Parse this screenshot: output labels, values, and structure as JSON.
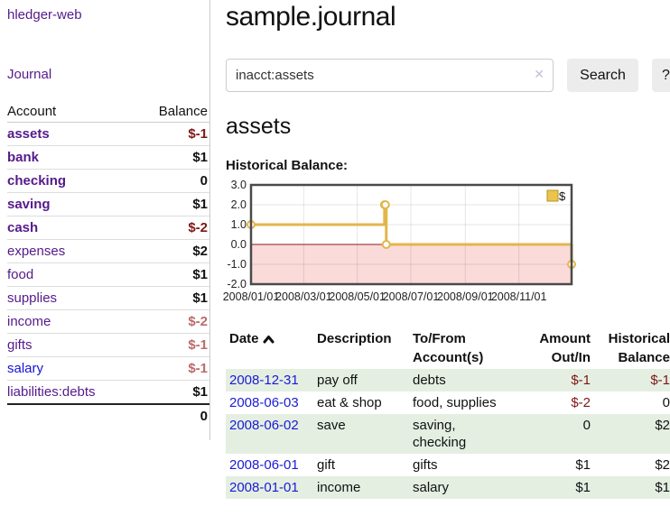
{
  "app": {
    "brand": "hledger-web",
    "nav_journal": "Journal"
  },
  "sidebar": {
    "headers": {
      "account": "Account",
      "balance": "Balance"
    },
    "accounts": [
      {
        "name": "assets",
        "balance": "$-1"
      },
      {
        "name": "bank",
        "balance": "$1"
      },
      {
        "name": "checking",
        "balance": "0"
      },
      {
        "name": "saving",
        "balance": "$1"
      },
      {
        "name": "cash",
        "balance": "$-2"
      },
      {
        "name": "expenses",
        "balance": "$2"
      },
      {
        "name": "food",
        "balance": "$1"
      },
      {
        "name": "supplies",
        "balance": "$1"
      },
      {
        "name": "income",
        "balance": "$-2"
      },
      {
        "name": "gifts",
        "balance": "$-1"
      },
      {
        "name": "salary",
        "balance": "$-1"
      },
      {
        "name": "liabilities:debts",
        "balance": "$1"
      }
    ],
    "total": "0"
  },
  "header": {
    "title": "sample.journal"
  },
  "search": {
    "value": "inacct:assets",
    "clear_label": "✕",
    "search_button": "Search",
    "help_button": "?"
  },
  "account_page": {
    "heading": "assets",
    "chart_label": "Historical Balance:"
  },
  "chart_data": {
    "type": "line",
    "step": true,
    "title": "Historical Balance",
    "legend": "$",
    "series": [
      {
        "name": "$",
        "color": "#e3b64b",
        "points": [
          [
            "2008-01-01",
            1
          ],
          [
            "2008-06-01",
            2
          ],
          [
            "2008-06-02",
            2
          ],
          [
            "2008-06-03",
            0
          ],
          [
            "2008-12-31",
            -1
          ]
        ]
      }
    ],
    "x_range": [
      "2008-01-01",
      "2008-12-31"
    ],
    "x_ticks": [
      {
        "date": "2008-01-01",
        "label": "2008/01/01"
      },
      {
        "date": "2008-03-01",
        "label": "2008/03/01"
      },
      {
        "date": "2008-05-01",
        "label": "2008/05/01"
      },
      {
        "date": "2008-07-01",
        "label": "2008/07/01"
      },
      {
        "date": "2008-09-01",
        "label": "2008/09/01"
      },
      {
        "date": "2008-11-01",
        "label": "2008/11/01"
      }
    ],
    "y_ticks": [
      {
        "v": 3,
        "label": "3.0"
      },
      {
        "v": 2,
        "label": "2.0"
      },
      {
        "v": 1,
        "label": "1.0"
      },
      {
        "v": 0,
        "label": "0.0"
      },
      {
        "v": -1,
        "label": "-1.0"
      },
      {
        "v": -2,
        "label": "-2.0"
      }
    ],
    "ylim": [
      -2,
      3
    ],
    "grid": true,
    "legend_position": "top-right",
    "negative_fill": "#fbdada",
    "zero_line_color": "#8b1a1a",
    "marker": {
      "fill": "#ffffff",
      "stroke": "#e3b64b"
    },
    "border_color": "#4a4a4a",
    "legend_swatch_fill": "#ecc44d",
    "legend_swatch_stroke": "#b89222"
  },
  "register": {
    "headers": {
      "date": "Date",
      "description": "Description",
      "accounts": "To/From\nAccount(s)",
      "amount": "Amount\nOut/In",
      "balance": "Historical\nBalance"
    },
    "rows": [
      {
        "date": "2008-12-31",
        "description": "pay off",
        "accounts": "debts",
        "amount": "$-1",
        "balance": "$-1"
      },
      {
        "date": "2008-06-03",
        "description": "eat & shop",
        "accounts": "food, supplies",
        "amount": "$-2",
        "balance": "0"
      },
      {
        "date": "2008-06-02",
        "description": "save",
        "accounts": "saving,\nchecking",
        "amount": "0",
        "balance": "$2"
      },
      {
        "date": "2008-06-01",
        "description": "gift",
        "accounts": "gifts",
        "amount": "$1",
        "balance": "$2"
      },
      {
        "date": "2008-01-01",
        "description": "income",
        "accounts": "salary",
        "amount": "$1",
        "balance": "$1"
      }
    ]
  }
}
